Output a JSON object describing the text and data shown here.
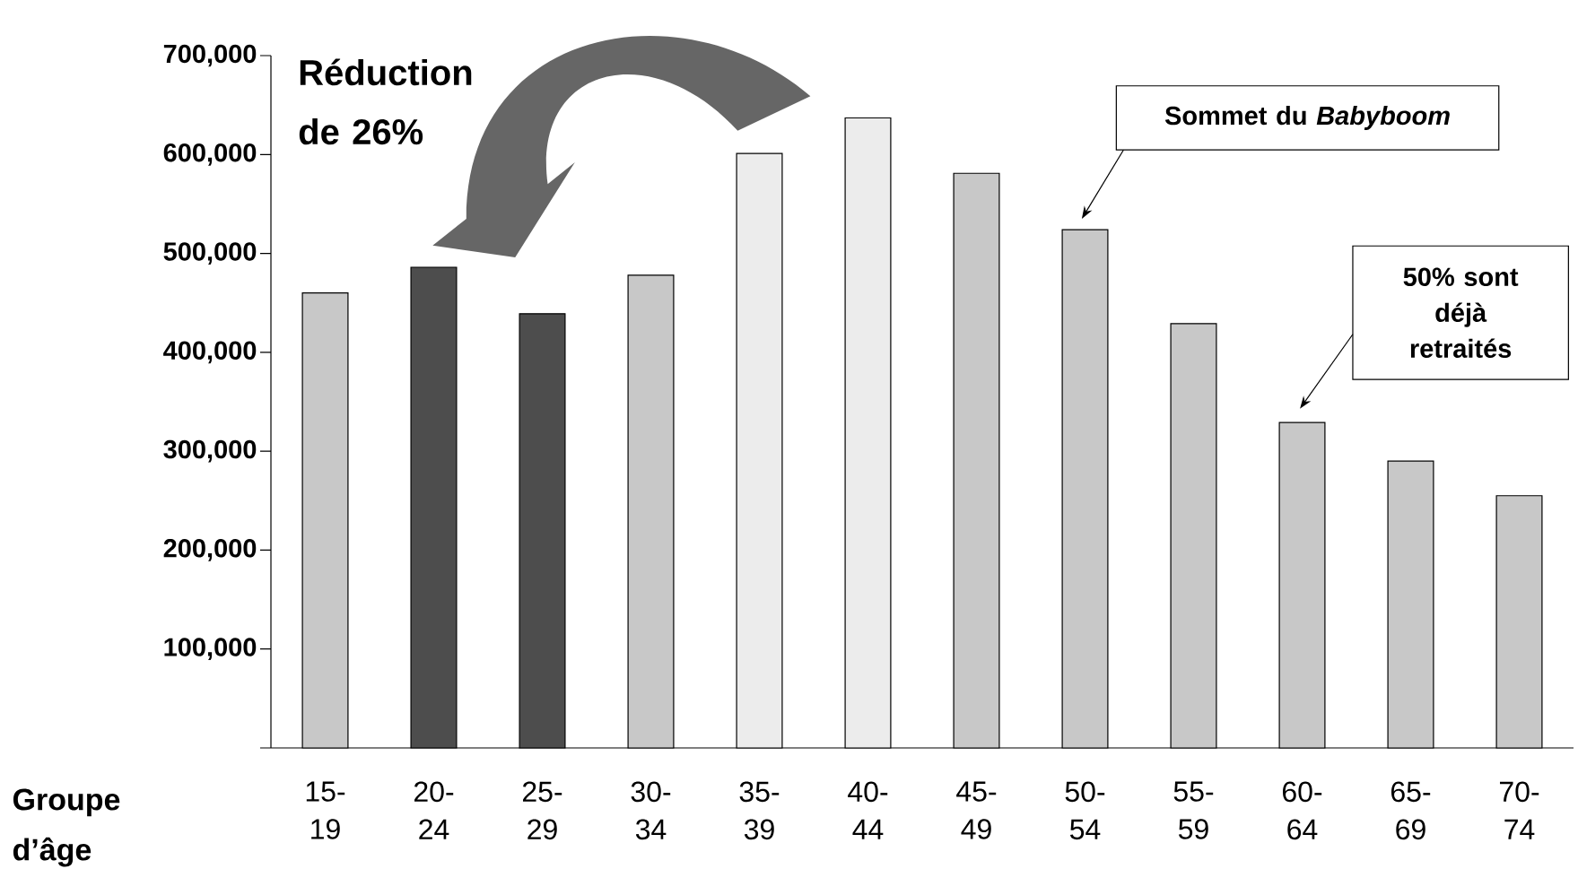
{
  "chart_data": {
    "type": "bar",
    "xlabel": "Groupe d’âge",
    "categories": [
      "15-19",
      "20-24",
      "25-29",
      "30-34",
      "35-39",
      "40-44",
      "45-49",
      "50-54",
      "55-59",
      "60-64",
      "65-69",
      "70-74"
    ],
    "values": [
      460000,
      486000,
      439000,
      478000,
      601000,
      637000,
      581000,
      524000,
      429000,
      329000,
      290000,
      255000
    ],
    "colors": [
      "#c8c8c8",
      "#4d4d4d",
      "#4d4d4d",
      "#c8c8c8",
      "#ececec",
      "#ececec",
      "#c8c8c8",
      "#c8c8c8",
      "#c8c8c8",
      "#c8c8c8",
      "#c8c8c8",
      "#c8c8c8"
    ],
    "ylim": [
      0,
      700000
    ],
    "yticks": [
      {
        "value": 0,
        "label": null
      },
      {
        "value": 100000,
        "label": "100,000"
      },
      {
        "value": 200000,
        "label": "200,000"
      },
      {
        "value": 300000,
        "label": "300,000"
      },
      {
        "value": 400000,
        "label": "400,000"
      },
      {
        "value": 500000,
        "label": "500,000"
      },
      {
        "value": 600000,
        "label": "600,000"
      },
      {
        "value": 700000,
        "label": "700,000"
      }
    ],
    "annotations": [
      "Réduction de 26%",
      "Sommet du *Babyboom*",
      "50% sont déjà retraités"
    ]
  }
}
